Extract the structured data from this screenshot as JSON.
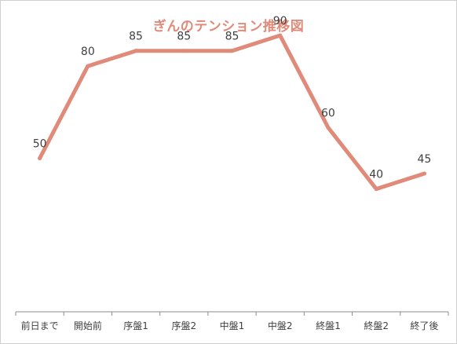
{
  "chart_data": {
    "type": "line",
    "title": "ぎんのテンション推移図",
    "categories": [
      "前日まで",
      "開始前",
      "序盤1",
      "序盤2",
      "中盤1",
      "中盤2",
      "終盤1",
      "終盤2",
      "終了後"
    ],
    "series": [
      {
        "values": [
          50,
          80,
          85,
          85,
          85,
          90,
          60,
          40,
          45
        ],
        "color": "#e08a7a"
      }
    ],
    "data_labels": true,
    "ylim": [
      0,
      100
    ],
    "grid": false,
    "legend": "none"
  }
}
